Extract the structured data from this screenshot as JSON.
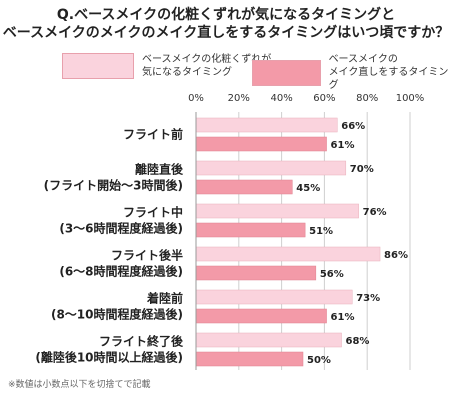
{
  "title_line1": "Q.ベースメイクの化粧くずれが気になるタイミングと",
  "title_line2": "ベースメイクのメイクのメイク直しをするタイミングはいつ頃ですか？",
  "legend": {
    "item1": "ベースメイクの化粧くずれが\n気になるタイミング",
    "item2": "ベースメイクの\nメイク直しをするタイミング"
  },
  "footnote": "※数値は小数点以下を切捨てで記載",
  "colors": {
    "series1": "#fad3dd",
    "series2": "#f39aa8"
  },
  "chart_data": {
    "type": "bar",
    "orientation": "horizontal",
    "title": "Q.ベースメイクの化粧くずれが気になるタイミングと ベースメイクのメイクのメイク直しをするタイミングはいつ頃ですか？",
    "categories": [
      [
        "フライト前"
      ],
      [
        "離陸直後",
        "(フライト開始～3時間後)"
      ],
      [
        "フライト中",
        "(3～6時間程度経過後)"
      ],
      [
        "フライト後半",
        "(6～8時間程度経過後)"
      ],
      [
        "着陸前",
        "(8～10時間程度経過後)"
      ],
      [
        "フライト終了後",
        "(離陸後10時間以上経過後)"
      ]
    ],
    "series": [
      {
        "name": "ベースメイクの化粧くずれが気になるタイミング",
        "values": [
          66,
          70,
          76,
          86,
          73,
          68
        ]
      },
      {
        "name": "ベースメイクのメイク直しをするタイミング",
        "values": [
          61,
          45,
          51,
          56,
          61,
          50
        ]
      }
    ],
    "xlim": [
      0,
      100
    ],
    "xticks": [
      "0%",
      "20%",
      "40%",
      "60%",
      "80%",
      "100%"
    ],
    "grid": true,
    "legend_position": "top"
  }
}
